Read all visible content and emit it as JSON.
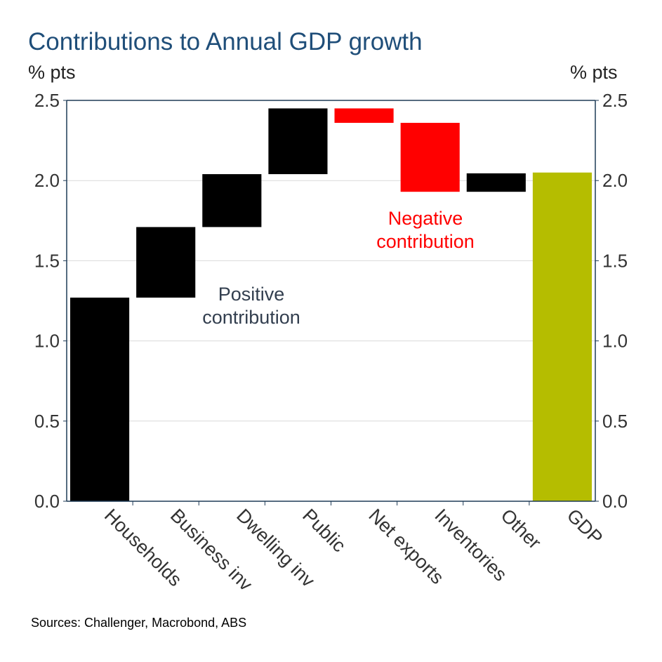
{
  "chart_data": {
    "type": "waterfall",
    "title": "Contributions to Annual GDP growth",
    "ylabel_left": "% pts",
    "ylabel_right": "% pts",
    "ylim": [
      0,
      2.5
    ],
    "yticks": [
      "0.0",
      "0.5",
      "1.0",
      "1.5",
      "2.0",
      "2.5"
    ],
    "grid": true,
    "categories": [
      "Households",
      "Business inv",
      "Dwelling inv",
      "Public",
      "Net exports",
      "Inventories",
      "Other",
      "GDP"
    ],
    "values": [
      1.27,
      0.44,
      0.33,
      0.41,
      -0.09,
      -0.43,
      0.115,
      2.05
    ],
    "total_index": 7,
    "colors": {
      "positive": "#000000",
      "negative": "#ff0000",
      "total": "#b5bd00",
      "title": "#1f4e79"
    },
    "annotations": [
      {
        "text_lines": [
          "Positive",
          "contribution"
        ],
        "color": "#333f4f"
      },
      {
        "text_lines": [
          "Negative",
          "contribution"
        ],
        "color": "#ff0000"
      }
    ],
    "source": "Sources: Challenger, Macrobond, ABS"
  }
}
